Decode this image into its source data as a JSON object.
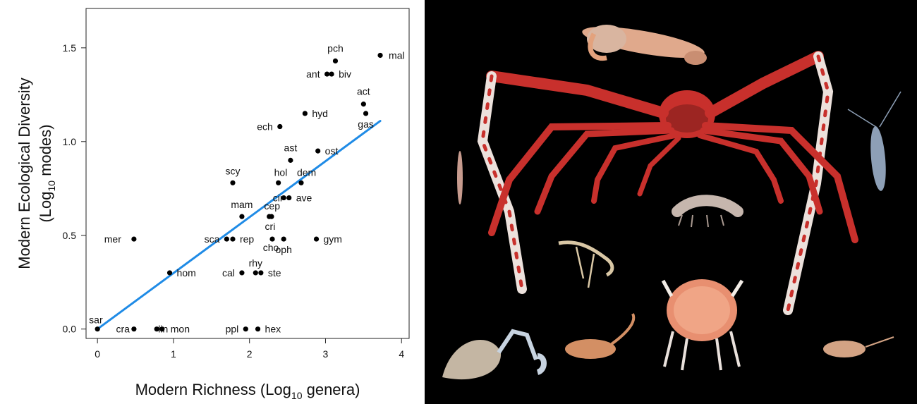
{
  "chart_data": {
    "type": "scatter",
    "xlabel_main": "Modern Richness (Log",
    "xlabel_sub": "10",
    "xlabel_tail": " genera)",
    "ylabel_line1": "Modern Ecological Diversity",
    "ylabel_line2_main": "(Log",
    "ylabel_line2_sub": "10",
    "ylabel_line2_tail": " modes)",
    "xlim": [
      -0.15,
      4.1
    ],
    "ylim": [
      -0.05,
      1.71
    ],
    "x_ticks": [
      0,
      1,
      2,
      3,
      4
    ],
    "y_ticks": [
      0.0,
      0.5,
      1.0,
      1.5
    ],
    "x_tick_labels": [
      "0",
      "1",
      "2",
      "3",
      "4"
    ],
    "y_tick_labels": [
      "0.0",
      "0.5",
      "1.0",
      "1.5"
    ],
    "grid": false,
    "fit_line": {
      "x": [
        0,
        3.72
      ],
      "y": [
        0,
        1.11
      ],
      "color": "#1f8be6"
    },
    "points": [
      {
        "label": "sar",
        "x": 0.0,
        "y": 0.0
      },
      {
        "label": "cra",
        "x": 0.48,
        "y": 0.0
      },
      {
        "label": "lin",
        "x": 0.78,
        "y": 0.0
      },
      {
        "label": "mon",
        "x": 0.85,
        "y": 0.0
      },
      {
        "label": "ppl",
        "x": 1.95,
        "y": 0.0
      },
      {
        "label": "hex",
        "x": 2.11,
        "y": 0.0
      },
      {
        "label": "mer",
        "x": 0.48,
        "y": 0.48
      },
      {
        "label": "hom",
        "x": 0.95,
        "y": 0.3
      },
      {
        "label": "sca",
        "x": 1.7,
        "y": 0.48
      },
      {
        "label": "rep",
        "x": 1.78,
        "y": 0.48
      },
      {
        "label": "cho",
        "x": 2.3,
        "y": 0.48
      },
      {
        "label": "oph",
        "x": 2.45,
        "y": 0.48
      },
      {
        "label": "gym",
        "x": 2.88,
        "y": 0.48
      },
      {
        "label": "cal",
        "x": 1.9,
        "y": 0.3
      },
      {
        "label": "rhy",
        "x": 2.08,
        "y": 0.3
      },
      {
        "label": "ste",
        "x": 2.15,
        "y": 0.3
      },
      {
        "label": "mam",
        "x": 1.9,
        "y": 0.6
      },
      {
        "label": "cep",
        "x": 2.26,
        "y": 0.6
      },
      {
        "label": "cri",
        "x": 2.29,
        "y": 0.6
      },
      {
        "label": "cir",
        "x": 2.45,
        "y": 0.7
      },
      {
        "label": "ave",
        "x": 2.52,
        "y": 0.7
      },
      {
        "label": "scy",
        "x": 1.78,
        "y": 0.78
      },
      {
        "label": "hol",
        "x": 2.38,
        "y": 0.78
      },
      {
        "label": "dem",
        "x": 2.68,
        "y": 0.78
      },
      {
        "label": "ast",
        "x": 2.54,
        "y": 0.9
      },
      {
        "label": "ost",
        "x": 2.9,
        "y": 0.95
      },
      {
        "label": "ech",
        "x": 2.4,
        "y": 1.08
      },
      {
        "label": "hyd",
        "x": 2.73,
        "y": 1.15
      },
      {
        "label": "act",
        "x": 3.5,
        "y": 1.2
      },
      {
        "label": "gas",
        "x": 3.53,
        "y": 1.15
      },
      {
        "label": "ant",
        "x": 3.02,
        "y": 1.36
      },
      {
        "label": "biv",
        "x": 3.08,
        "y": 1.36
      },
      {
        "label": "pch",
        "x": 3.13,
        "y": 1.43
      },
      {
        "label": "mal",
        "x": 3.72,
        "y": 1.46
      }
    ]
  },
  "photo": {
    "background": "#000000",
    "crab_color": "#c8302c",
    "crab_light": "#f1e7e2"
  }
}
